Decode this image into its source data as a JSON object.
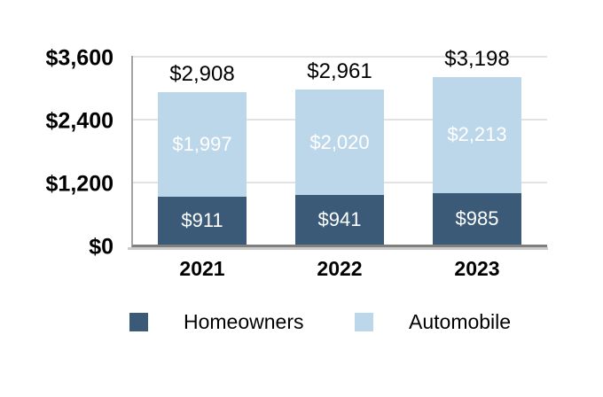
{
  "chart_data": {
    "type": "bar",
    "stacked": true,
    "categories": [
      "2021",
      "2022",
      "2023"
    ],
    "series": [
      {
        "name": "Homeowners",
        "color": "#3b5a77",
        "values": [
          911,
          941,
          985
        ],
        "value_labels": [
          "$911",
          "$941",
          "$985"
        ]
      },
      {
        "name": "Automobile",
        "color": "#bdd7ea",
        "values": [
          1997,
          2020,
          2213
        ],
        "value_labels": [
          "$1,997",
          "$2,020",
          "$2,213"
        ]
      }
    ],
    "totals": [
      2908,
      2961,
      3198
    ],
    "total_labels": [
      "$2,908",
      "$2,961",
      "$3,198"
    ],
    "y_axis": {
      "max": 3600,
      "ticks": [
        0,
        1200,
        2400,
        3600
      ],
      "tick_labels": [
        "$0",
        "$1,200",
        "$2,400",
        "$3,600"
      ]
    },
    "legend": {
      "position": "bottom",
      "entries": [
        "Homeowners",
        "Automobile"
      ]
    },
    "grid": "horizontal",
    "text_color": "#000000",
    "label_color_inside_bars": "#ffffff"
  }
}
